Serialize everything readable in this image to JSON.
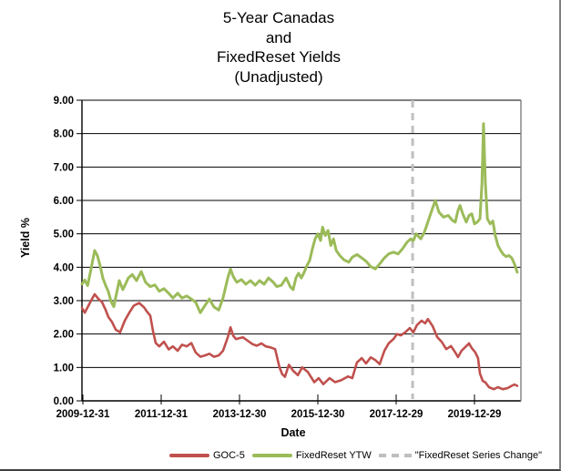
{
  "title": "5-Year Canadas\nand\nFixedReset Yields\n(Unadjusted)",
  "axes": {
    "y_title": "Yield %",
    "x_title": "Date",
    "y_ticks": [
      "0.00",
      "1.00",
      "2.00",
      "3.00",
      "4.00",
      "5.00",
      "6.00",
      "7.00",
      "8.00",
      "9.00"
    ],
    "x_ticks": [
      {
        "label": "2009-12-31",
        "year": 2010.0
      },
      {
        "label": "2011-12-31",
        "year": 2012.0
      },
      {
        "label": "2013-12-30",
        "year": 2014.0
      },
      {
        "label": "2015-12-30",
        "year": 2016.0
      },
      {
        "label": "2017-12-29",
        "year": 2018.0
      },
      {
        "label": "2019-12-29",
        "year": 2020.0
      }
    ]
  },
  "legend": {
    "goc5": "GOC-5",
    "fixedreset": "FixedReset YTW",
    "series_change": "\"FixedReset Series Change\""
  },
  "colors": {
    "goc5": "#c0504d",
    "fixedreset": "#9bbb59",
    "series_change": "#bfbfbf",
    "grid": "#000000",
    "plot_border": "#808080",
    "text": "#000000",
    "background": "#ffffff"
  },
  "chart_data": {
    "type": "line",
    "title": "5-Year Canadas and FixedReset Yields (Unadjusted)",
    "xlabel": "Date",
    "ylabel": "Yield %",
    "ylim": [
      0,
      9
    ],
    "xlim": [
      2009.98,
      2021.19
    ],
    "grid": "horizontal",
    "legend_position": "bottom",
    "vline": {
      "label": "\"FixedReset Series Change\"",
      "x": 2018.42,
      "style": "dashed",
      "color": "#bfbfbf"
    },
    "series": [
      {
        "name": "GOC-5",
        "color": "#c0504d",
        "points": [
          [
            2009.98,
            2.78
          ],
          [
            2010.05,
            2.64
          ],
          [
            2010.12,
            2.8
          ],
          [
            2010.21,
            3.0
          ],
          [
            2010.3,
            3.19
          ],
          [
            2010.4,
            3.05
          ],
          [
            2010.49,
            2.95
          ],
          [
            2010.58,
            2.73
          ],
          [
            2010.65,
            2.51
          ],
          [
            2010.74,
            2.37
          ],
          [
            2010.84,
            2.13
          ],
          [
            2010.95,
            2.05
          ],
          [
            2011.07,
            2.4
          ],
          [
            2011.19,
            2.65
          ],
          [
            2011.3,
            2.85
          ],
          [
            2011.44,
            2.93
          ],
          [
            2011.56,
            2.8
          ],
          [
            2011.63,
            2.68
          ],
          [
            2011.72,
            2.55
          ],
          [
            2011.79,
            2.09
          ],
          [
            2011.86,
            1.73
          ],
          [
            2011.95,
            1.63
          ],
          [
            2012.07,
            1.77
          ],
          [
            2012.19,
            1.54
          ],
          [
            2012.3,
            1.63
          ],
          [
            2012.42,
            1.5
          ],
          [
            2012.53,
            1.68
          ],
          [
            2012.65,
            1.63
          ],
          [
            2012.77,
            1.73
          ],
          [
            2012.88,
            1.45
          ],
          [
            2013.0,
            1.32
          ],
          [
            2013.12,
            1.36
          ],
          [
            2013.23,
            1.41
          ],
          [
            2013.35,
            1.32
          ],
          [
            2013.47,
            1.36
          ],
          [
            2013.58,
            1.5
          ],
          [
            2013.7,
            1.9
          ],
          [
            2013.77,
            2.2
          ],
          [
            2013.84,
            1.95
          ],
          [
            2013.91,
            1.85
          ],
          [
            2014.0,
            1.88
          ],
          [
            2014.09,
            1.9
          ],
          [
            2014.21,
            1.8
          ],
          [
            2014.33,
            1.7
          ],
          [
            2014.44,
            1.65
          ],
          [
            2014.56,
            1.72
          ],
          [
            2014.67,
            1.63
          ],
          [
            2014.79,
            1.6
          ],
          [
            2014.91,
            1.55
          ],
          [
            2015.02,
            1.0
          ],
          [
            2015.09,
            0.8
          ],
          [
            2015.16,
            0.72
          ],
          [
            2015.26,
            1.08
          ],
          [
            2015.37,
            0.9
          ],
          [
            2015.49,
            0.77
          ],
          [
            2015.6,
            1.0
          ],
          [
            2015.74,
            0.87
          ],
          [
            2015.91,
            0.56
          ],
          [
            2016.02,
            0.68
          ],
          [
            2016.14,
            0.5
          ],
          [
            2016.3,
            0.68
          ],
          [
            2016.44,
            0.56
          ],
          [
            2016.6,
            0.62
          ],
          [
            2016.77,
            0.73
          ],
          [
            2016.88,
            0.68
          ],
          [
            2017.0,
            1.15
          ],
          [
            2017.12,
            1.28
          ],
          [
            2017.23,
            1.12
          ],
          [
            2017.35,
            1.3
          ],
          [
            2017.47,
            1.22
          ],
          [
            2017.58,
            1.1
          ],
          [
            2017.7,
            1.5
          ],
          [
            2017.81,
            1.72
          ],
          [
            2017.93,
            1.85
          ],
          [
            2018.02,
            2.0
          ],
          [
            2018.12,
            1.96
          ],
          [
            2018.23,
            2.05
          ],
          [
            2018.35,
            2.18
          ],
          [
            2018.44,
            2.05
          ],
          [
            2018.53,
            2.27
          ],
          [
            2018.65,
            2.4
          ],
          [
            2018.74,
            2.32
          ],
          [
            2018.81,
            2.45
          ],
          [
            2018.93,
            2.24
          ],
          [
            2019.05,
            1.91
          ],
          [
            2019.16,
            1.77
          ],
          [
            2019.28,
            1.55
          ],
          [
            2019.4,
            1.64
          ],
          [
            2019.51,
            1.45
          ],
          [
            2019.58,
            1.31
          ],
          [
            2019.67,
            1.5
          ],
          [
            2019.79,
            1.64
          ],
          [
            2019.86,
            1.72
          ],
          [
            2019.93,
            1.58
          ],
          [
            2020.02,
            1.45
          ],
          [
            2020.09,
            1.28
          ],
          [
            2020.14,
            0.82
          ],
          [
            2020.21,
            0.6
          ],
          [
            2020.28,
            0.55
          ],
          [
            2020.37,
            0.41
          ],
          [
            2020.49,
            0.35
          ],
          [
            2020.6,
            0.41
          ],
          [
            2020.72,
            0.35
          ],
          [
            2020.84,
            0.38
          ],
          [
            2020.95,
            0.45
          ],
          [
            2021.02,
            0.49
          ],
          [
            2021.09,
            0.45
          ]
        ]
      },
      {
        "name": "FixedReset YTW",
        "color": "#9bbb59",
        "points": [
          [
            2009.98,
            3.5
          ],
          [
            2010.05,
            3.62
          ],
          [
            2010.12,
            3.45
          ],
          [
            2010.21,
            3.95
          ],
          [
            2010.3,
            4.5
          ],
          [
            2010.37,
            4.35
          ],
          [
            2010.44,
            4.05
          ],
          [
            2010.51,
            3.68
          ],
          [
            2010.58,
            3.46
          ],
          [
            2010.65,
            3.27
          ],
          [
            2010.72,
            2.97
          ],
          [
            2010.79,
            2.82
          ],
          [
            2010.86,
            3.22
          ],
          [
            2010.93,
            3.6
          ],
          [
            2011.02,
            3.33
          ],
          [
            2011.09,
            3.5
          ],
          [
            2011.16,
            3.68
          ],
          [
            2011.26,
            3.78
          ],
          [
            2011.37,
            3.6
          ],
          [
            2011.49,
            3.87
          ],
          [
            2011.6,
            3.55
          ],
          [
            2011.72,
            3.42
          ],
          [
            2011.84,
            3.47
          ],
          [
            2011.95,
            3.28
          ],
          [
            2012.07,
            3.36
          ],
          [
            2012.19,
            3.22
          ],
          [
            2012.3,
            3.08
          ],
          [
            2012.42,
            3.22
          ],
          [
            2012.53,
            3.08
          ],
          [
            2012.65,
            3.14
          ],
          [
            2012.77,
            3.05
          ],
          [
            2012.88,
            2.95
          ],
          [
            2013.0,
            2.64
          ],
          [
            2013.12,
            2.86
          ],
          [
            2013.23,
            3.05
          ],
          [
            2013.35,
            2.81
          ],
          [
            2013.47,
            2.72
          ],
          [
            2013.58,
            3.08
          ],
          [
            2013.7,
            3.68
          ],
          [
            2013.77,
            3.95
          ],
          [
            2013.84,
            3.72
          ],
          [
            2013.93,
            3.55
          ],
          [
            2014.05,
            3.63
          ],
          [
            2014.16,
            3.49
          ],
          [
            2014.28,
            3.6
          ],
          [
            2014.4,
            3.46
          ],
          [
            2014.51,
            3.6
          ],
          [
            2014.63,
            3.49
          ],
          [
            2014.74,
            3.68
          ],
          [
            2014.86,
            3.55
          ],
          [
            2014.95,
            3.42
          ],
          [
            2015.07,
            3.46
          ],
          [
            2015.19,
            3.68
          ],
          [
            2015.3,
            3.41
          ],
          [
            2015.37,
            3.33
          ],
          [
            2015.44,
            3.68
          ],
          [
            2015.51,
            3.82
          ],
          [
            2015.58,
            3.68
          ],
          [
            2015.65,
            3.85
          ],
          [
            2015.72,
            4.05
          ],
          [
            2015.79,
            4.2
          ],
          [
            2015.86,
            4.55
          ],
          [
            2015.93,
            4.85
          ],
          [
            2016.0,
            5.0
          ],
          [
            2016.07,
            4.8
          ],
          [
            2016.12,
            5.2
          ],
          [
            2016.19,
            4.95
          ],
          [
            2016.26,
            5.1
          ],
          [
            2016.33,
            4.65
          ],
          [
            2016.4,
            4.85
          ],
          [
            2016.47,
            4.5
          ],
          [
            2016.56,
            4.35
          ],
          [
            2016.67,
            4.22
          ],
          [
            2016.79,
            4.15
          ],
          [
            2016.88,
            4.3
          ],
          [
            2017.0,
            4.38
          ],
          [
            2017.12,
            4.28
          ],
          [
            2017.23,
            4.18
          ],
          [
            2017.35,
            4.02
          ],
          [
            2017.47,
            3.95
          ],
          [
            2017.58,
            4.1
          ],
          [
            2017.7,
            4.28
          ],
          [
            2017.81,
            4.4
          ],
          [
            2017.93,
            4.45
          ],
          [
            2018.05,
            4.4
          ],
          [
            2018.16,
            4.55
          ],
          [
            2018.28,
            4.75
          ],
          [
            2018.37,
            4.85
          ],
          [
            2018.44,
            4.8
          ],
          [
            2018.51,
            5.0
          ],
          [
            2018.63,
            4.85
          ],
          [
            2018.72,
            5.05
          ],
          [
            2018.81,
            5.35
          ],
          [
            2018.91,
            5.7
          ],
          [
            2019.0,
            6.0
          ],
          [
            2019.09,
            5.65
          ],
          [
            2019.21,
            5.5
          ],
          [
            2019.33,
            5.55
          ],
          [
            2019.44,
            5.4
          ],
          [
            2019.51,
            5.35
          ],
          [
            2019.58,
            5.7
          ],
          [
            2019.63,
            5.85
          ],
          [
            2019.7,
            5.6
          ],
          [
            2019.79,
            5.35
          ],
          [
            2019.86,
            5.55
          ],
          [
            2019.93,
            5.6
          ],
          [
            2020.0,
            5.3
          ],
          [
            2020.07,
            5.35
          ],
          [
            2020.14,
            5.45
          ],
          [
            2020.19,
            6.5
          ],
          [
            2020.23,
            8.3
          ],
          [
            2020.28,
            6.5
          ],
          [
            2020.33,
            5.45
          ],
          [
            2020.4,
            5.3
          ],
          [
            2020.47,
            5.38
          ],
          [
            2020.53,
            4.95
          ],
          [
            2020.6,
            4.65
          ],
          [
            2020.67,
            4.5
          ],
          [
            2020.74,
            4.38
          ],
          [
            2020.81,
            4.32
          ],
          [
            2020.88,
            4.35
          ],
          [
            2020.95,
            4.28
          ],
          [
            2021.02,
            4.1
          ],
          [
            2021.09,
            3.85
          ]
        ]
      }
    ]
  }
}
